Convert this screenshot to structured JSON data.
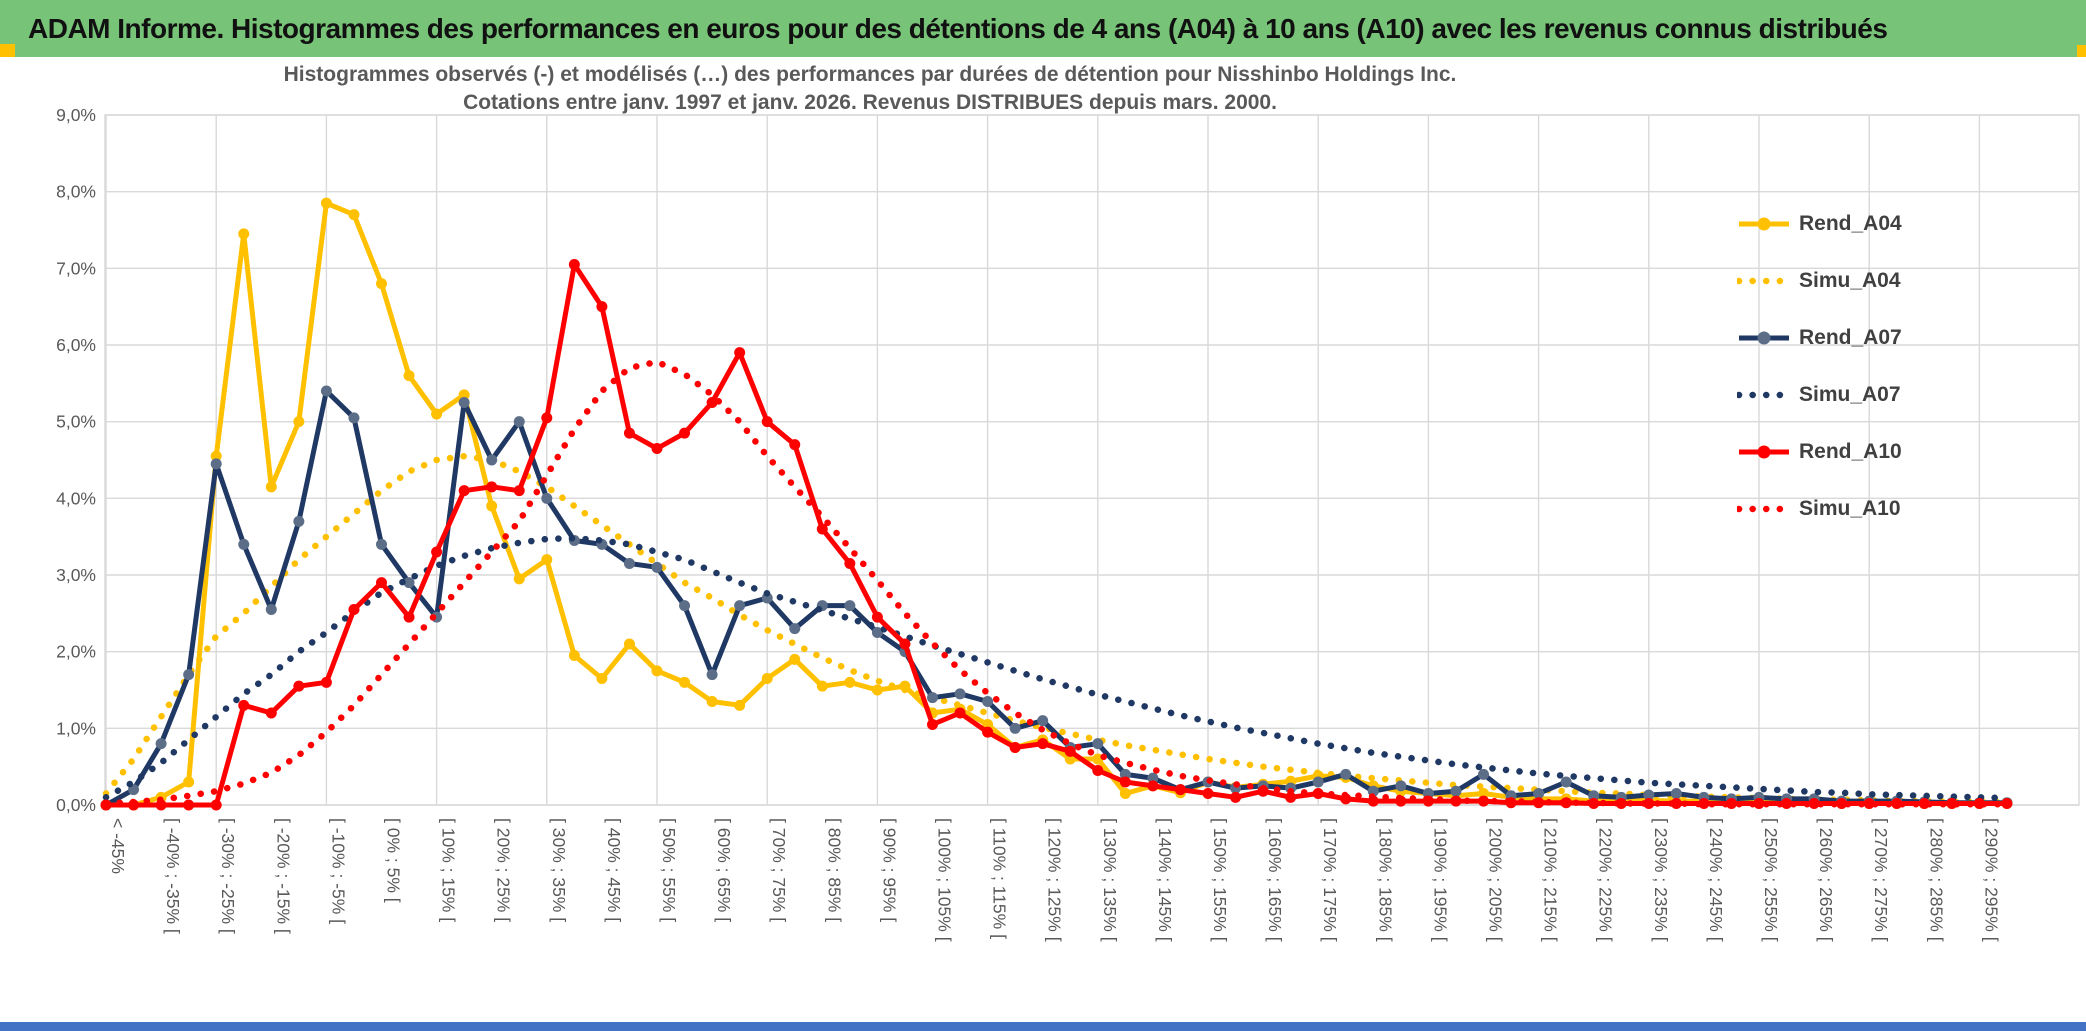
{
  "window": {
    "title_bar": "ADAM Informe. Histogrammes des performances en euros pour des détentions de 4 ans (A04) à 10 ans (A10) avec les revenus connus distribués"
  },
  "colors": {
    "header_green": "#77C377",
    "accent_gold": "#FFC000",
    "footer_blue": "#4472C4",
    "grid": "#D9D9D9",
    "axis_text": "#595959",
    "title_text": "#595959",
    "legend_text": "#404040"
  },
  "chart_data": {
    "type": "line",
    "title": "Histogrammes observés (-) et modélisés (…) des performances par durées de détention pour Nisshinbo Holdings Inc.",
    "subtitle": "Cotations entre janv. 1997 et janv. 2026. Revenus DISTRIBUES depuis mars. 2000.",
    "ylim": [
      0,
      9
    ],
    "y_ticks": [
      "0,0%",
      "1,0%",
      "2,0%",
      "3,0%",
      "4,0%",
      "5,0%",
      "6,0%",
      "7,0%",
      "8,0%",
      "9,0%"
    ],
    "grid": "on",
    "legend_position": "right-inside",
    "x_bin_width_percent": 5,
    "x_label_every_n_points": 2,
    "x_labels": [
      "< -45%",
      "[ -40% ; -35% [",
      "[ -30% ; -25% [",
      "[ -20% ; -15% [",
      "[ -10% ; -5% [",
      "[ 0% ; 5% [",
      "[ 10% ; 15% [",
      "[ 20% ; 25% [",
      "[ 30% ; 35% [",
      "[ 40% ; 45% [",
      "[ 50% ; 55% [",
      "[ 60% ; 65% [",
      "[ 70% ; 75% [",
      "[ 80% ; 85% [",
      "[ 90% ; 95% [",
      "[ 100% ; 105% [",
      "[ 110% ; 115% [",
      "[ 120% ; 125% [",
      "[ 130% ; 135% [",
      "[ 140% ; 145% [",
      "[ 150% ; 155% [",
      "[ 160% ; 165% [",
      "[ 170% ; 175% [",
      "[ 180% ; 185% [",
      "[ 190% ; 195% [",
      "[ 200% ; 205% [",
      "[ 210% ; 215% [",
      "[ 220% ; 225% [",
      "[ 230% ; 235% [",
      "[ 240% ; 245% [",
      "[ 250% ; 255% [",
      "[ 260% ; 265% [",
      "[ 270% ; 275% [",
      "[ 280% ; 285% [",
      "[ 290% ; 295% ["
    ],
    "series": [
      {
        "name": "Rend_A04",
        "color": "#FFC000",
        "line": "solid",
        "marker": true,
        "marker_color": "#FFC000",
        "values": [
          0,
          0,
          0.1,
          0.3,
          4.55,
          7.45,
          4.15,
          5.0,
          7.85,
          7.7,
          6.8,
          5.6,
          5.1,
          5.35,
          3.9,
          2.95,
          3.2,
          1.95,
          1.65,
          2.1,
          1.75,
          1.6,
          1.35,
          1.3,
          1.65,
          1.9,
          1.55,
          1.6,
          1.5,
          1.55,
          1.2,
          1.25,
          1.05,
          0.75,
          0.85,
          0.6,
          0.6,
          0.15,
          0.25,
          0.16,
          0.3,
          0.23,
          0.27,
          0.31,
          0.38,
          0.36,
          0.25,
          0.18,
          0.15,
          0.12,
          0.15,
          0.1,
          0.08,
          0.08,
          0.05,
          0.08,
          0.06,
          0.05,
          0.05,
          0.04,
          0.03,
          0.03,
          0.03,
          0.02,
          0.02,
          0.02,
          0.02,
          0.02,
          0.02,
          0.02
        ]
      },
      {
        "name": "Simu_A04",
        "color": "#FFC000",
        "line": "dotted",
        "marker": false,
        "values": [
          0.15,
          0.6,
          1.15,
          1.7,
          2.2,
          2.5,
          2.85,
          3.2,
          3.5,
          3.8,
          4.1,
          4.35,
          4.5,
          4.55,
          4.5,
          4.35,
          4.15,
          3.9,
          3.65,
          3.4,
          3.15,
          2.9,
          2.7,
          2.48,
          2.28,
          2.1,
          1.92,
          1.76,
          1.62,
          1.5,
          1.4,
          1.3,
          1.2,
          1.1,
          1.01,
          0.93,
          0.85,
          0.78,
          0.72,
          0.66,
          0.6,
          0.55,
          0.5,
          0.46,
          0.42,
          0.38,
          0.35,
          0.32,
          0.29,
          0.26,
          0.24,
          0.22,
          0.2,
          0.18,
          0.16,
          0.15,
          0.13,
          0.12,
          0.11,
          0.1,
          0.09,
          0.08,
          0.07,
          0.07,
          0.06,
          0.05,
          0.05,
          0.04,
          0.04,
          0.04
        ]
      },
      {
        "name": "Rend_A07",
        "color": "#1F3864",
        "line": "solid",
        "marker": true,
        "marker_color": "#5C6E87",
        "values": [
          0,
          0.2,
          0.8,
          1.7,
          4.45,
          3.4,
          2.55,
          3.7,
          5.4,
          5.05,
          3.4,
          2.9,
          2.45,
          5.25,
          4.5,
          5.0,
          4.0,
          3.45,
          3.4,
          3.15,
          3.1,
          2.6,
          1.7,
          2.6,
          2.7,
          2.3,
          2.6,
          2.6,
          2.25,
          2.0,
          1.4,
          1.45,
          1.35,
          1.0,
          1.1,
          0.75,
          0.8,
          0.4,
          0.35,
          0.2,
          0.3,
          0.22,
          0.25,
          0.22,
          0.3,
          0.4,
          0.18,
          0.25,
          0.15,
          0.18,
          0.4,
          0.12,
          0.15,
          0.3,
          0.12,
          0.1,
          0.13,
          0.15,
          0.1,
          0.08,
          0.1,
          0.08,
          0.08,
          0.05,
          0.05,
          0.05,
          0.04,
          0.03,
          0.03,
          0.03
        ]
      },
      {
        "name": "Simu_A07",
        "color": "#1F3864",
        "line": "dotted",
        "marker": false,
        "values": [
          0.1,
          0.3,
          0.55,
          0.85,
          1.15,
          1.45,
          1.7,
          2.0,
          2.25,
          2.52,
          2.77,
          2.95,
          3.12,
          3.25,
          3.35,
          3.42,
          3.47,
          3.48,
          3.45,
          3.4,
          3.3,
          3.2,
          3.05,
          2.9,
          2.76,
          2.65,
          2.54,
          2.43,
          2.32,
          2.2,
          2.08,
          1.97,
          1.86,
          1.75,
          1.64,
          1.54,
          1.44,
          1.35,
          1.26,
          1.17,
          1.09,
          1.01,
          0.94,
          0.87,
          0.8,
          0.74,
          0.68,
          0.63,
          0.58,
          0.53,
          0.49,
          0.45,
          0.41,
          0.38,
          0.35,
          0.32,
          0.29,
          0.27,
          0.25,
          0.23,
          0.21,
          0.19,
          0.17,
          0.16,
          0.14,
          0.13,
          0.12,
          0.11,
          0.1,
          0.09
        ]
      },
      {
        "name": "Rend_A10",
        "color": "#FF0000",
        "line": "solid",
        "marker": true,
        "marker_color": "#FF0000",
        "values": [
          0,
          0,
          0,
          0,
          0,
          1.3,
          1.2,
          1.55,
          1.6,
          2.55,
          2.9,
          2.45,
          3.3,
          4.1,
          4.15,
          4.1,
          5.05,
          7.05,
          6.5,
          4.85,
          4.65,
          4.85,
          5.25,
          5.9,
          5.0,
          4.7,
          3.6,
          3.15,
          2.45,
          2.1,
          1.05,
          1.2,
          0.95,
          0.75,
          0.8,
          0.7,
          0.45,
          0.3,
          0.25,
          0.2,
          0.15,
          0.1,
          0.18,
          0.1,
          0.15,
          0.08,
          0.05,
          0.05,
          0.05,
          0.05,
          0.05,
          0.03,
          0.03,
          0.03,
          0.02,
          0.02,
          0.02,
          0.02,
          0.02,
          0.02,
          0.02,
          0.02,
          0.02,
          0.02,
          0.02,
          0.02,
          0.02,
          0.02,
          0.02,
          0.02
        ]
      },
      {
        "name": "Simu_A10",
        "color": "#FF0000",
        "line": "dotted",
        "marker": false,
        "values": [
          0.02,
          0.04,
          0.07,
          0.12,
          0.18,
          0.28,
          0.42,
          0.65,
          0.95,
          1.3,
          1.7,
          2.1,
          2.5,
          2.9,
          3.3,
          3.7,
          4.3,
          4.9,
          5.4,
          5.7,
          5.78,
          5.62,
          5.35,
          5.0,
          4.55,
          4.15,
          3.76,
          3.35,
          2.93,
          2.5,
          2.11,
          1.76,
          1.46,
          1.2,
          0.98,
          0.8,
          0.65,
          0.55,
          0.46,
          0.38,
          0.32,
          0.27,
          0.22,
          0.18,
          0.15,
          0.13,
          0.11,
          0.09,
          0.08,
          0.06,
          0.05,
          0.05,
          0.04,
          0.03,
          0.03,
          0.02,
          0.02,
          0.02,
          0.01,
          0.01,
          0.01,
          0.01,
          0.01,
          0.01,
          0.01,
          0.01,
          0.01,
          0.01,
          0.01,
          0.01
        ]
      }
    ]
  }
}
